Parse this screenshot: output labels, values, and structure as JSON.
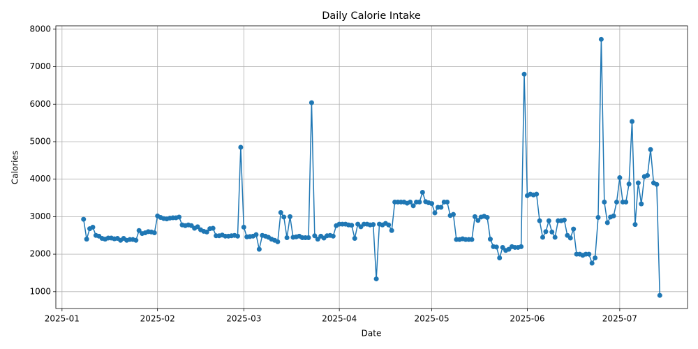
{
  "chart_data": {
    "type": "line",
    "title": "Daily Calorie Intake",
    "x_label": "Date",
    "y_label": "Calories",
    "grid": true,
    "markers": true,
    "xlim": [
      "2024-12-30",
      "2025-07-23"
    ],
    "xticks": [
      "2025-01",
      "2025-02",
      "2025-03",
      "2025-04",
      "2025-05",
      "2025-06",
      "2025-07"
    ],
    "ylim": [
      550,
      8090
    ],
    "yticks": [
      1000,
      2000,
      3000,
      4000,
      5000,
      6000,
      7000,
      8000
    ],
    "x": [
      "2025-01-08",
      "2025-01-09",
      "2025-01-10",
      "2025-01-11",
      "2025-01-12",
      "2025-01-13",
      "2025-01-14",
      "2025-01-15",
      "2025-01-16",
      "2025-01-17",
      "2025-01-18",
      "2025-01-19",
      "2025-01-20",
      "2025-01-21",
      "2025-01-22",
      "2025-01-23",
      "2025-01-24",
      "2025-01-25",
      "2025-01-26",
      "2025-01-27",
      "2025-01-28",
      "2025-01-29",
      "2025-01-30",
      "2025-01-31",
      "2025-02-01",
      "2025-02-02",
      "2025-02-03",
      "2025-02-04",
      "2025-02-05",
      "2025-02-06",
      "2025-02-07",
      "2025-02-08",
      "2025-02-09",
      "2025-02-10",
      "2025-02-11",
      "2025-02-12",
      "2025-02-13",
      "2025-02-14",
      "2025-02-15",
      "2025-02-16",
      "2025-02-17",
      "2025-02-18",
      "2025-02-19",
      "2025-02-20",
      "2025-02-21",
      "2025-02-22",
      "2025-02-23",
      "2025-02-24",
      "2025-02-25",
      "2025-02-26",
      "2025-02-27",
      "2025-02-28",
      "2025-03-01",
      "2025-03-02",
      "2025-03-03",
      "2025-03-04",
      "2025-03-05",
      "2025-03-06",
      "2025-03-07",
      "2025-03-08",
      "2025-03-09",
      "2025-03-10",
      "2025-03-11",
      "2025-03-12",
      "2025-03-13",
      "2025-03-14",
      "2025-03-15",
      "2025-03-16",
      "2025-03-17",
      "2025-03-18",
      "2025-03-19",
      "2025-03-20",
      "2025-03-21",
      "2025-03-22",
      "2025-03-23",
      "2025-03-24",
      "2025-03-25",
      "2025-03-26",
      "2025-03-27",
      "2025-03-28",
      "2025-03-29",
      "2025-03-30",
      "2025-03-31",
      "2025-04-01",
      "2025-04-02",
      "2025-04-03",
      "2025-04-04",
      "2025-04-05",
      "2025-04-06",
      "2025-04-07",
      "2025-04-08",
      "2025-04-09",
      "2025-04-10",
      "2025-04-11",
      "2025-04-12",
      "2025-04-13",
      "2025-04-14",
      "2025-04-15",
      "2025-04-16",
      "2025-04-17",
      "2025-04-18",
      "2025-04-19",
      "2025-04-20",
      "2025-04-21",
      "2025-04-22",
      "2025-04-23",
      "2025-04-24",
      "2025-04-25",
      "2025-04-26",
      "2025-04-27",
      "2025-04-28",
      "2025-04-29",
      "2025-04-30",
      "2025-05-01",
      "2025-05-02",
      "2025-05-03",
      "2025-05-04",
      "2025-05-05",
      "2025-05-06",
      "2025-05-07",
      "2025-05-08",
      "2025-05-09",
      "2025-05-10",
      "2025-05-11",
      "2025-05-12",
      "2025-05-13",
      "2025-05-14",
      "2025-05-15",
      "2025-05-16",
      "2025-05-17",
      "2025-05-18",
      "2025-05-19",
      "2025-05-20",
      "2025-05-21",
      "2025-05-22",
      "2025-05-23",
      "2025-05-24",
      "2025-05-25",
      "2025-05-26",
      "2025-05-27",
      "2025-05-28",
      "2025-05-29",
      "2025-05-30",
      "2025-05-31",
      "2025-06-01",
      "2025-06-02",
      "2025-06-03",
      "2025-06-04",
      "2025-06-05",
      "2025-06-06",
      "2025-06-07",
      "2025-06-08",
      "2025-06-09",
      "2025-06-10",
      "2025-06-11",
      "2025-06-12",
      "2025-06-13",
      "2025-06-14",
      "2025-06-15",
      "2025-06-16",
      "2025-06-17",
      "2025-06-18",
      "2025-06-19",
      "2025-06-20",
      "2025-06-21",
      "2025-06-22",
      "2025-06-23",
      "2025-06-24",
      "2025-06-25",
      "2025-06-26",
      "2025-06-27",
      "2025-06-28",
      "2025-06-29",
      "2025-06-30",
      "2025-07-01",
      "2025-07-02",
      "2025-07-03",
      "2025-07-04",
      "2025-07-05",
      "2025-07-06",
      "2025-07-07",
      "2025-07-08",
      "2025-07-09",
      "2025-07-10",
      "2025-07-11",
      "2025-07-12",
      "2025-07-13",
      "2025-07-14"
    ],
    "series": [
      {
        "name": "Calories",
        "color": "#1f77b4",
        "values": [
          2930,
          2400,
          2680,
          2720,
          2500,
          2480,
          2420,
          2400,
          2430,
          2430,
          2410,
          2420,
          2370,
          2420,
          2370,
          2390,
          2390,
          2370,
          2630,
          2550,
          2570,
          2600,
          2590,
          2570,
          3020,
          2980,
          2950,
          2940,
          2960,
          2970,
          2970,
          2990,
          2780,
          2760,
          2780,
          2760,
          2690,
          2730,
          2650,
          2610,
          2590,
          2680,
          2690,
          2490,
          2490,
          2510,
          2480,
          2480,
          2490,
          2500,
          2480,
          4850,
          2720,
          2460,
          2470,
          2480,
          2520,
          2130,
          2500,
          2480,
          2450,
          2400,
          2370,
          2330,
          3110,
          2990,
          2440,
          3000,
          2450,
          2460,
          2480,
          2440,
          2440,
          2440,
          6040,
          2490,
          2400,
          2480,
          2430,
          2490,
          2500,
          2480,
          2760,
          2800,
          2800,
          2800,
          2780,
          2770,
          2420,
          2800,
          2730,
          2800,
          2800,
          2780,
          2790,
          1340,
          2800,
          2780,
          2820,
          2780,
          2630,
          3390,
          3390,
          3390,
          3390,
          3360,
          3390,
          3290,
          3390,
          3390,
          3650,
          3400,
          3370,
          3350,
          3100,
          3250,
          3250,
          3390,
          3390,
          3030,
          3060,
          2390,
          2390,
          2410,
          2390,
          2390,
          2390,
          3000,
          2900,
          2990,
          3010,
          2980,
          2400,
          2200,
          2190,
          1900,
          2180,
          2100,
          2130,
          2200,
          2180,
          2180,
          2200,
          6800,
          3560,
          3600,
          3580,
          3600,
          2890,
          2450,
          2600,
          2890,
          2590,
          2450,
          2890,
          2890,
          2910,
          2500,
          2430,
          2670,
          2000,
          2000,
          1970,
          2000,
          2000,
          1760,
          1900,
          2980,
          7730,
          3390,
          2840,
          2990,
          3020,
          3390,
          4040,
          3390,
          3390,
          3870,
          5540,
          2790,
          3900,
          3340,
          4070,
          4100,
          4790,
          3900,
          3860,
          900
        ]
      }
    ]
  }
}
